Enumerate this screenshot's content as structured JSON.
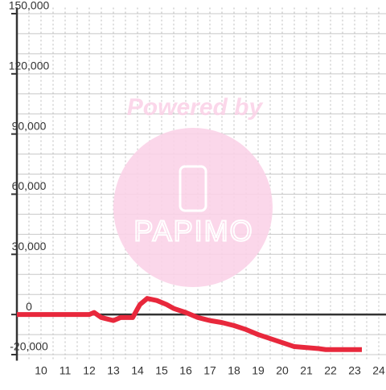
{
  "chart_data": {
    "type": "line",
    "annotations": [
      "Powered by",
      "PAPIMO"
    ],
    "series": [
      {
        "color": "#e8283c",
        "x": [
          9,
          12,
          12.2,
          12.5,
          13,
          13.3,
          13.8,
          14.1,
          14.4,
          14.8,
          15.2,
          15.5,
          16,
          16.5,
          17,
          17.5,
          18,
          18.5,
          19,
          19.5,
          20,
          20.5,
          21,
          21.5,
          21.8,
          22,
          23.3
        ],
        "values": [
          0,
          0,
          1000,
          -1500,
          -3000,
          -1500,
          -1500,
          5000,
          8000,
          7000,
          5000,
          3000,
          1000,
          -1500,
          -3000,
          -4000,
          -5500,
          -7500,
          -10000,
          -12000,
          -14000,
          -16000,
          -16500,
          -17000,
          -17500,
          -17500,
          -17500
        ]
      }
    ],
    "xlim": [
      9,
      24.3
    ],
    "xticks": [
      10,
      11,
      12,
      13,
      14,
      15,
      16,
      17,
      18,
      19,
      20,
      21,
      22,
      23,
      24
    ],
    "xgrid": [
      9.5,
      10,
      10.5,
      11,
      11.5,
      12,
      12.5,
      13,
      13.5,
      14,
      14.5,
      15,
      15.5,
      16,
      16.5,
      17,
      17.5,
      18,
      18.5,
      19,
      19.5,
      20,
      20.5,
      21,
      21.5,
      22,
      22.5,
      23,
      23.5,
      24
    ],
    "ylim": [
      -23000,
      153000
    ],
    "yticks": [
      {
        "value": -20000,
        "label": "-20,000"
      },
      0,
      {
        "value": 30000,
        "label": "30,000"
      },
      {
        "value": 60000,
        "label": "60,000"
      },
      {
        "value": 90000,
        "label": "90,000"
      },
      {
        "value": 120000,
        "label": "120,000"
      },
      {
        "value": 150000,
        "label": "150,000"
      }
    ],
    "ygrid": [
      -20000,
      -10000,
      10000,
      20000,
      30000,
      40000,
      50000,
      60000,
      70000,
      80000,
      90000,
      100000,
      110000,
      120000,
      130000,
      140000,
      150000
    ]
  }
}
